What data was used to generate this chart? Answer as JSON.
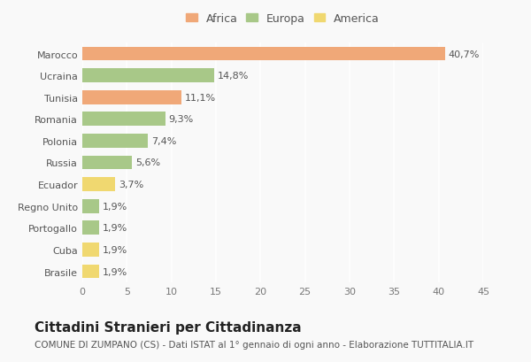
{
  "categories": [
    "Marocco",
    "Ucraina",
    "Tunisia",
    "Romania",
    "Polonia",
    "Russia",
    "Ecuador",
    "Regno Unito",
    "Portogallo",
    "Cuba",
    "Brasile"
  ],
  "values": [
    40.7,
    14.8,
    11.1,
    9.3,
    7.4,
    5.6,
    3.7,
    1.9,
    1.9,
    1.9,
    1.9
  ],
  "labels": [
    "40,7%",
    "14,8%",
    "11,1%",
    "9,3%",
    "7,4%",
    "5,6%",
    "3,7%",
    "1,9%",
    "1,9%",
    "1,9%",
    "1,9%"
  ],
  "colors": [
    "#F0A878",
    "#A8C888",
    "#F0A878",
    "#A8C888",
    "#A8C888",
    "#A8C888",
    "#F0D870",
    "#A8C888",
    "#A8C888",
    "#F0D870",
    "#F0D870"
  ],
  "legend_items": [
    {
      "label": "Africa",
      "color": "#F0A878"
    },
    {
      "label": "Europa",
      "color": "#A8C888"
    },
    {
      "label": "America",
      "color": "#F0D870"
    }
  ],
  "xlim": [
    0,
    45
  ],
  "xticks": [
    0,
    5,
    10,
    15,
    20,
    25,
    30,
    35,
    40,
    45
  ],
  "title": "Cittadini Stranieri per Cittadinanza",
  "subtitle": "COMUNE DI ZUMPANO (CS) - Dati ISTAT al 1° gennaio di ogni anno - Elaborazione TUTTITALIA.IT",
  "background_color": "#f9f9f9",
  "bar_height": 0.65,
  "title_fontsize": 11,
  "subtitle_fontsize": 7.5,
  "label_fontsize": 8,
  "tick_fontsize": 8,
  "legend_fontsize": 9
}
